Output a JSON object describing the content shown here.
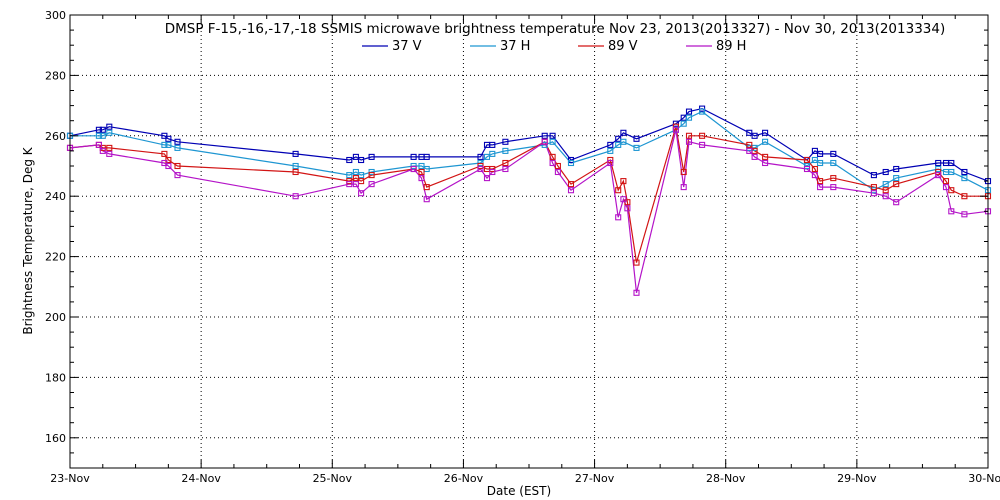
{
  "chart_data": {
    "type": "line",
    "title": "DMSP F-15,-16,-17,-18 SSMIS microwave brightness temperature Nov 23, 2013(2013327) - Nov 30, 2013(2013334)",
    "xlabel": "Date (EST)",
    "ylabel": "Brightness Temperature, Deg K",
    "xlim": [
      23.0,
      30.0
    ],
    "ylim": [
      150,
      300
    ],
    "x_ticks": [
      {
        "value": 23,
        "label": "23-Nov"
      },
      {
        "value": 24,
        "label": "24-Nov"
      },
      {
        "value": 25,
        "label": "25-Nov"
      },
      {
        "value": 26,
        "label": "26-Nov"
      },
      {
        "value": 27,
        "label": "27-Nov"
      },
      {
        "value": 28,
        "label": "28-Nov"
      },
      {
        "value": 29,
        "label": "29-Nov"
      },
      {
        "value": 30,
        "label": "30-Nov"
      }
    ],
    "y_ticks": [
      {
        "value": 160,
        "label": "160"
      },
      {
        "value": 180,
        "label": "180"
      },
      {
        "value": 200,
        "label": "200"
      },
      {
        "value": 220,
        "label": "220"
      },
      {
        "value": 240,
        "label": "240"
      },
      {
        "value": 260,
        "label": "260"
      },
      {
        "value": 280,
        "label": "280"
      },
      {
        "value": 300,
        "label": "300"
      }
    ],
    "grid": true,
    "legend_position": "top-center",
    "series": [
      {
        "name": "37 V",
        "color": "#0000b4",
        "x": [
          23.0,
          23.22,
          23.25,
          23.3,
          23.72,
          23.75,
          23.82,
          24.72,
          25.13,
          25.18,
          25.22,
          25.3,
          25.62,
          25.68,
          25.72,
          26.13,
          26.18,
          26.22,
          26.32,
          26.62,
          26.68,
          26.82,
          27.12,
          27.18,
          27.22,
          27.32,
          27.62,
          27.68,
          27.72,
          27.82,
          28.18,
          28.22,
          28.3,
          28.62,
          28.68,
          28.72,
          28.82,
          29.13,
          29.22,
          29.3,
          29.62,
          29.68,
          29.72,
          29.82,
          30.0
        ],
        "values": [
          260.0,
          262.0,
          262.0,
          263.0,
          260.0,
          259.0,
          258.0,
          254.0,
          252.0,
          253.0,
          252.0,
          253.0,
          253.0,
          253.0,
          253.0,
          253.0,
          257.0,
          257.0,
          258.0,
          260.0,
          260.0,
          252.0,
          257.0,
          259.0,
          261.0,
          259.0,
          264.0,
          266.0,
          268.0,
          269.0,
          261.0,
          260.0,
          261.0,
          252.0,
          255.0,
          254.0,
          254.0,
          247.0,
          248.0,
          249.0,
          251.0,
          251.0,
          251.0,
          248.0,
          245.0
        ]
      },
      {
        "name": "37 H",
        "color": "#1e96d2",
        "x": [
          23.0,
          23.22,
          23.25,
          23.3,
          23.72,
          23.75,
          23.82,
          24.72,
          25.13,
          25.18,
          25.22,
          25.3,
          25.62,
          25.68,
          25.72,
          26.13,
          26.18,
          26.22,
          26.32,
          26.62,
          26.68,
          26.82,
          27.12,
          27.18,
          27.22,
          27.32,
          27.62,
          27.68,
          27.72,
          27.82,
          28.18,
          28.22,
          28.3,
          28.62,
          28.68,
          28.72,
          28.82,
          29.13,
          29.22,
          29.3,
          29.62,
          29.68,
          29.72,
          29.82,
          30.0
        ],
        "values": [
          260.0,
          260.0,
          260.0,
          261.0,
          257.0,
          257.0,
          256.0,
          250.0,
          247.0,
          248.0,
          247.0,
          248.0,
          250.0,
          250.0,
          249.0,
          251.0,
          253.0,
          254.0,
          255.0,
          257.0,
          258.0,
          251.0,
          255.0,
          257.0,
          258.0,
          256.0,
          262.0,
          264.0,
          266.0,
          268.0,
          256.0,
          256.0,
          258.0,
          250.0,
          252.0,
          251.0,
          251.0,
          242.0,
          244.0,
          246.0,
          249.0,
          248.0,
          248.0,
          246.0,
          242.0
        ]
      },
      {
        "name": "89 V",
        "color": "#d21414",
        "x": [
          23.0,
          23.22,
          23.25,
          23.3,
          23.72,
          23.75,
          23.82,
          24.72,
          25.13,
          25.18,
          25.22,
          25.3,
          25.62,
          25.68,
          25.72,
          26.13,
          26.18,
          26.22,
          26.32,
          26.62,
          26.68,
          26.72,
          26.82,
          27.12,
          27.18,
          27.22,
          27.25,
          27.32,
          27.62,
          27.68,
          27.72,
          27.82,
          28.18,
          28.22,
          28.3,
          28.62,
          28.68,
          28.72,
          28.82,
          29.13,
          29.22,
          29.3,
          29.62,
          29.68,
          29.72,
          29.82,
          30.0
        ],
        "values": [
          256.0,
          257.0,
          256.0,
          256.0,
          254.0,
          252.0,
          250.0,
          248.0,
          245.0,
          246.0,
          245.0,
          247.0,
          249.0,
          248.0,
          243.0,
          250.0,
          249.0,
          249.0,
          251.0,
          258.0,
          253.0,
          250.0,
          244.0,
          252.0,
          242.0,
          245.0,
          238.0,
          218.0,
          263.0,
          248.0,
          260.0,
          260.0,
          257.0,
          255.0,
          253.0,
          252.0,
          249.0,
          245.0,
          246.0,
          243.0,
          242.0,
          244.0,
          248.0,
          245.0,
          242.0,
          240.0,
          240.0
        ]
      },
      {
        "name": "89 H",
        "color": "#b414c8",
        "x": [
          23.0,
          23.22,
          23.25,
          23.3,
          23.72,
          23.75,
          23.82,
          24.72,
          25.13,
          25.18,
          25.22,
          25.3,
          25.62,
          25.68,
          25.72,
          26.13,
          26.18,
          26.22,
          26.32,
          26.62,
          26.68,
          26.72,
          26.82,
          27.12,
          27.18,
          27.22,
          27.25,
          27.32,
          27.62,
          27.68,
          27.72,
          27.82,
          28.18,
          28.22,
          28.3,
          28.62,
          28.68,
          28.72,
          28.82,
          29.13,
          29.22,
          29.3,
          29.62,
          29.68,
          29.72,
          29.82,
          30.0
        ],
        "values": [
          256.0,
          257.0,
          255.0,
          254.0,
          251.0,
          250.0,
          247.0,
          240.0,
          244.0,
          244.0,
          241.0,
          244.0,
          249.0,
          246.0,
          239.0,
          249.0,
          246.0,
          248.0,
          249.0,
          258.0,
          251.0,
          248.0,
          242.0,
          251.0,
          233.0,
          239.0,
          236.0,
          208.0,
          262.0,
          243.0,
          258.0,
          257.0,
          255.0,
          253.0,
          251.0,
          249.0,
          247.0,
          243.0,
          243.0,
          241.0,
          240.0,
          238.0,
          247.0,
          243.0,
          235.0,
          234.0,
          235.0
        ]
      }
    ]
  }
}
